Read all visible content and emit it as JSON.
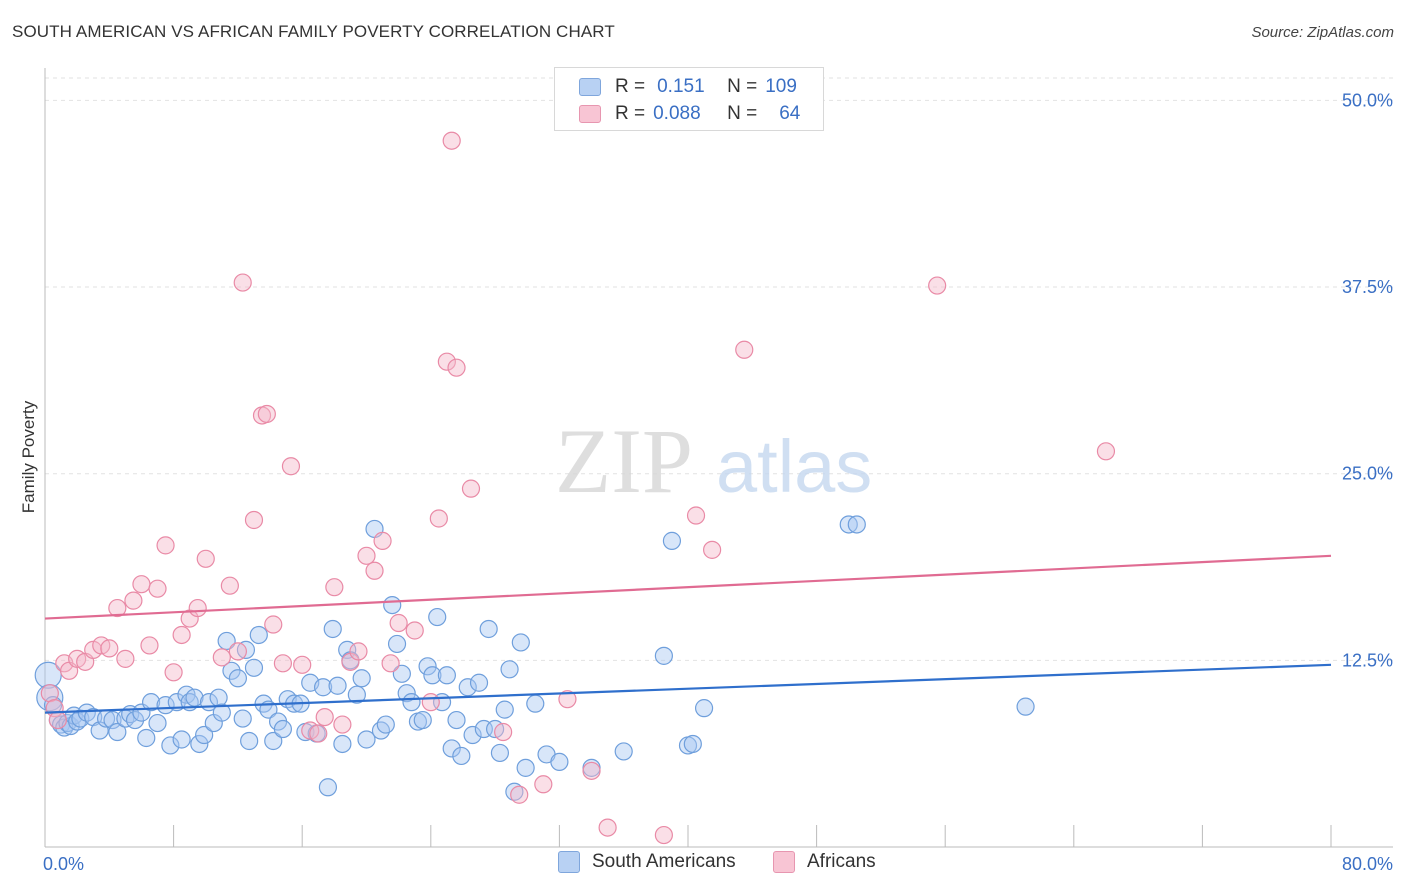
{
  "header": {
    "title": "SOUTH AMERICAN VS AFRICAN FAMILY POVERTY CORRELATION CHART",
    "source": "Source: ZipAtlas.com"
  },
  "watermark": {
    "part1": "ZIP",
    "part2": "atlas"
  },
  "legend": {
    "rows": [
      {
        "r_label": "R =",
        "r_value": "0.151",
        "n_label": "N =",
        "n_value": "109"
      },
      {
        "r_label": "R =",
        "r_value": "0.088",
        "n_label": "N =",
        "n_value": "64"
      }
    ]
  },
  "chart_data": {
    "type": "scatter",
    "title": "SOUTH AMERICAN VS AFRICAN FAMILY POVERTY CORRELATION CHART",
    "xlabel": "",
    "ylabel": "Family Poverty",
    "xlim": [
      0,
      80
    ],
    "ylim": [
      0,
      51.5
    ],
    "x_tick_labels": [
      "0.0%",
      "80.0%"
    ],
    "y_ticks": [
      12.5,
      25.0,
      37.5,
      50.0
    ],
    "y_tick_labels": [
      "12.5%",
      "25.0%",
      "37.5%",
      "50.0%"
    ],
    "grid": true,
    "legend_position": "bottom",
    "colors": {
      "south_fill": "#a9c8f2",
      "south_stroke": "#6f9fdc",
      "south_line": "#2f6fcc",
      "african_fill": "#f5b7c9",
      "african_stroke": "#e98aa6",
      "african_line": "#e06b92",
      "tick_label": "#3a6fc4"
    },
    "series": [
      {
        "name": "South Americans",
        "r": 0.151,
        "n": 109,
        "trend": {
          "x": [
            0,
            80
          ],
          "y": [
            9.0,
            12.2
          ]
        },
        "points": [
          [
            0.2,
            11.5
          ],
          [
            0.3,
            10.0
          ],
          [
            0.5,
            9.5
          ],
          [
            0.8,
            8.5
          ],
          [
            1.0,
            8.2
          ],
          [
            1.2,
            8.0
          ],
          [
            1.4,
            8.3
          ],
          [
            1.6,
            8.1
          ],
          [
            1.8,
            8.8
          ],
          [
            2.0,
            8.4
          ],
          [
            2.2,
            8.6
          ],
          [
            2.6,
            9.0
          ],
          [
            3.0,
            8.7
          ],
          [
            3.4,
            7.8
          ],
          [
            3.8,
            8.6
          ],
          [
            4.2,
            8.5
          ],
          [
            4.5,
            7.7
          ],
          [
            5.0,
            8.6
          ],
          [
            5.3,
            8.9
          ],
          [
            5.6,
            8.5
          ],
          [
            6.0,
            9.0
          ],
          [
            6.3,
            7.3
          ],
          [
            6.6,
            9.7
          ],
          [
            7.0,
            8.3
          ],
          [
            7.5,
            9.5
          ],
          [
            7.8,
            6.8
          ],
          [
            8.2,
            9.7
          ],
          [
            8.5,
            7.2
          ],
          [
            8.8,
            10.2
          ],
          [
            9.0,
            9.7
          ],
          [
            9.3,
            10.0
          ],
          [
            9.6,
            6.9
          ],
          [
            9.9,
            7.5
          ],
          [
            10.2,
            9.7
          ],
          [
            10.5,
            8.3
          ],
          [
            10.8,
            10.0
          ],
          [
            11.0,
            9.0
          ],
          [
            11.3,
            13.8
          ],
          [
            11.6,
            11.8
          ],
          [
            12.0,
            11.3
          ],
          [
            12.3,
            8.6
          ],
          [
            12.5,
            13.2
          ],
          [
            12.7,
            7.1
          ],
          [
            13.0,
            12.0
          ],
          [
            13.3,
            14.2
          ],
          [
            13.6,
            9.6
          ],
          [
            13.9,
            9.2
          ],
          [
            14.2,
            7.1
          ],
          [
            14.5,
            8.4
          ],
          [
            14.8,
            7.9
          ],
          [
            15.1,
            9.9
          ],
          [
            15.5,
            9.6
          ],
          [
            15.9,
            9.6
          ],
          [
            16.2,
            7.7
          ],
          [
            16.5,
            11.0
          ],
          [
            16.9,
            7.6
          ],
          [
            17.3,
            10.7
          ],
          [
            17.6,
            4.0
          ],
          [
            17.9,
            14.6
          ],
          [
            18.2,
            10.8
          ],
          [
            18.5,
            6.9
          ],
          [
            18.8,
            13.2
          ],
          [
            19.0,
            12.5
          ],
          [
            19.4,
            10.2
          ],
          [
            19.7,
            11.3
          ],
          [
            20.0,
            7.2
          ],
          [
            20.5,
            21.3
          ],
          [
            20.9,
            7.8
          ],
          [
            21.2,
            8.2
          ],
          [
            21.6,
            16.2
          ],
          [
            21.9,
            13.6
          ],
          [
            22.2,
            11.6
          ],
          [
            22.5,
            10.3
          ],
          [
            22.8,
            9.7
          ],
          [
            23.2,
            8.4
          ],
          [
            23.5,
            8.5
          ],
          [
            23.8,
            12.1
          ],
          [
            24.1,
            11.5
          ],
          [
            24.4,
            15.4
          ],
          [
            24.7,
            9.7
          ],
          [
            25.0,
            11.5
          ],
          [
            25.3,
            6.6
          ],
          [
            25.6,
            8.5
          ],
          [
            25.9,
            6.1
          ],
          [
            26.3,
            10.7
          ],
          [
            26.6,
            7.5
          ],
          [
            27.0,
            11.0
          ],
          [
            27.3,
            7.9
          ],
          [
            27.6,
            14.6
          ],
          [
            28.0,
            7.9
          ],
          [
            28.3,
            6.3
          ],
          [
            28.6,
            9.2
          ],
          [
            28.9,
            11.9
          ],
          [
            29.2,
            3.7
          ],
          [
            29.6,
            13.7
          ],
          [
            29.9,
            5.3
          ],
          [
            30.5,
            9.6
          ],
          [
            31.2,
            6.2
          ],
          [
            32.0,
            5.7
          ],
          [
            34.0,
            5.3
          ],
          [
            36.0,
            6.4
          ],
          [
            38.5,
            12.8
          ],
          [
            39.0,
            20.5
          ],
          [
            40.0,
            6.8
          ],
          [
            40.3,
            6.9
          ],
          [
            41.0,
            9.3
          ],
          [
            50.0,
            21.6
          ],
          [
            61.0,
            9.4
          ],
          [
            50.5,
            21.6
          ]
        ]
      },
      {
        "name": "Africans",
        "r": 0.088,
        "n": 64,
        "trend": {
          "x": [
            0,
            80
          ],
          "y": [
            15.3,
            19.5
          ]
        },
        "points": [
          [
            0.3,
            10.3
          ],
          [
            0.6,
            9.3
          ],
          [
            0.8,
            8.5
          ],
          [
            1.2,
            12.3
          ],
          [
            1.5,
            11.8
          ],
          [
            2.0,
            12.6
          ],
          [
            2.5,
            12.4
          ],
          [
            3.0,
            13.2
          ],
          [
            3.5,
            13.5
          ],
          [
            4.0,
            13.3
          ],
          [
            4.5,
            16.0
          ],
          [
            5.0,
            12.6
          ],
          [
            5.5,
            16.5
          ],
          [
            6.0,
            17.6
          ],
          [
            6.5,
            13.5
          ],
          [
            7.0,
            17.3
          ],
          [
            7.5,
            20.2
          ],
          [
            8.0,
            11.7
          ],
          [
            8.5,
            14.2
          ],
          [
            9.0,
            15.3
          ],
          [
            9.5,
            16.0
          ],
          [
            10.0,
            19.3
          ],
          [
            11.0,
            12.7
          ],
          [
            11.5,
            17.5
          ],
          [
            12.0,
            13.1
          ],
          [
            12.3,
            37.8
          ],
          [
            13.0,
            21.9
          ],
          [
            13.5,
            28.9
          ],
          [
            13.8,
            29.0
          ],
          [
            14.2,
            14.9
          ],
          [
            14.8,
            12.3
          ],
          [
            15.3,
            25.5
          ],
          [
            16.0,
            12.2
          ],
          [
            16.5,
            7.8
          ],
          [
            17.0,
            7.6
          ],
          [
            17.4,
            8.7
          ],
          [
            18.0,
            17.4
          ],
          [
            18.5,
            8.2
          ],
          [
            19.0,
            12.4
          ],
          [
            19.5,
            13.1
          ],
          [
            20.0,
            19.5
          ],
          [
            20.5,
            18.5
          ],
          [
            21.0,
            20.5
          ],
          [
            21.5,
            12.3
          ],
          [
            22.0,
            15.0
          ],
          [
            23.0,
            14.5
          ],
          [
            24.0,
            9.7
          ],
          [
            24.5,
            22.0
          ],
          [
            25.0,
            32.5
          ],
          [
            25.3,
            47.3
          ],
          [
            25.6,
            32.1
          ],
          [
            26.5,
            24.0
          ],
          [
            28.5,
            7.7
          ],
          [
            29.5,
            3.5
          ],
          [
            31.0,
            4.2
          ],
          [
            32.5,
            9.9
          ],
          [
            34.0,
            5.1
          ],
          [
            35.0,
            1.3
          ],
          [
            38.5,
            0.8
          ],
          [
            40.5,
            22.2
          ],
          [
            41.5,
            19.9
          ],
          [
            43.5,
            33.3
          ],
          [
            55.5,
            37.6
          ],
          [
            66.0,
            26.5
          ]
        ]
      }
    ]
  },
  "bottom_legend": [
    {
      "label": "South Americans"
    },
    {
      "label": "Africans"
    }
  ]
}
